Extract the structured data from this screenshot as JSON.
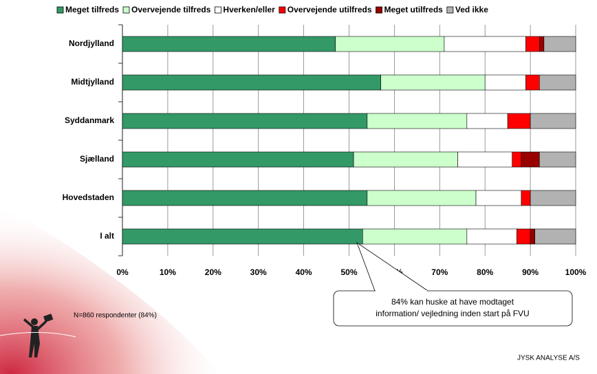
{
  "chart_data": {
    "type": "stacked-bar-horizontal",
    "categories": [
      "Nordjylland",
      "Midtjylland",
      "Syddanmark",
      "Sjælland",
      "Hovedstaden",
      "I alt"
    ],
    "series": [
      {
        "name": "Meget tilfreds",
        "color": "#339966",
        "values": [
          47,
          57,
          54,
          51,
          54,
          53
        ]
      },
      {
        "name": "Overvejende tilfreds",
        "color": "#ccffcc",
        "values": [
          24,
          23,
          22,
          23,
          24,
          23
        ]
      },
      {
        "name": "Hverken/eller",
        "color": "#ffffff",
        "values": [
          18,
          9,
          9,
          12,
          10,
          11
        ]
      },
      {
        "name": "Overvejende utilfreds",
        "color": "#ff0000",
        "values": [
          3,
          3,
          5,
          2,
          2,
          3
        ]
      },
      {
        "name": "Meget utilfreds",
        "color": "#990000",
        "values": [
          1,
          0,
          0,
          4,
          0,
          1
        ]
      },
      {
        "name": "Ved ikke",
        "color": "#b2b2b2",
        "values": [
          7,
          8,
          10,
          8,
          10,
          9
        ]
      }
    ],
    "xlim": [
      0,
      100
    ],
    "xticks": [
      {
        "value": 0,
        "label": "0%"
      },
      {
        "value": 10,
        "label": "10%"
      },
      {
        "value": 20,
        "label": "20%"
      },
      {
        "value": 30,
        "label": "30%"
      },
      {
        "value": 40,
        "label": "40%"
      },
      {
        "value": 50,
        "label": "50%"
      },
      {
        "value": 60,
        "label": "60%"
      },
      {
        "value": 70,
        "label": "70%"
      },
      {
        "value": 80,
        "label": "80%"
      },
      {
        "value": 90,
        "label": "90%"
      },
      {
        "value": 100,
        "label": "100%"
      }
    ],
    "grid": true,
    "legend": "top",
    "annotations": [
      "84% kan huske at have modtaget",
      "information/ vejledning inden start på FVU"
    ],
    "note": "N=860 respondenter (84%)",
    "footer": "JYSK ANALYSE A/S"
  }
}
